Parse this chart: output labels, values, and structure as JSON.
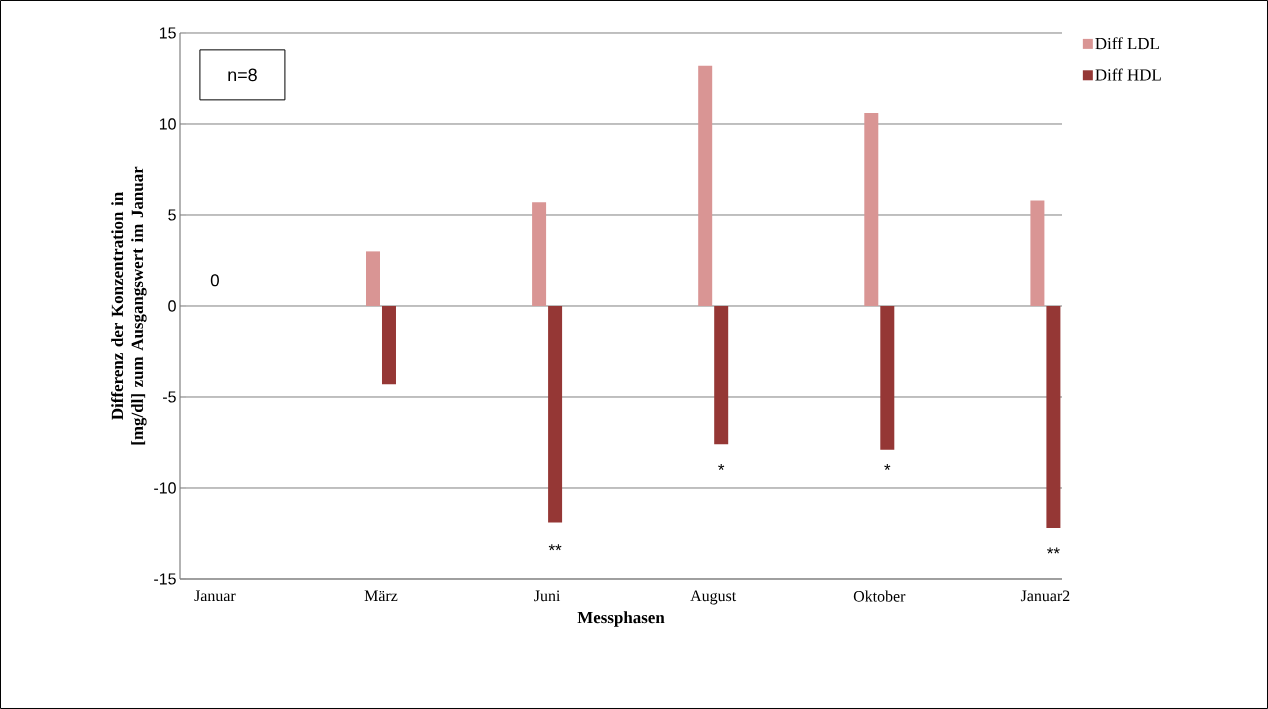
{
  "chart_data": {
    "type": "bar",
    "xlabel": "Messphasen",
    "ylabel": "Differenz der Konzentration in [mg/dl] zum Ausgangswert im Januar",
    "categories": [
      "Januar",
      "März",
      "Juni",
      "August",
      "Oktober",
      "Januar2"
    ],
    "series": [
      {
        "name": "Diff LDL",
        "color": "#d99594",
        "values": [
          0,
          3.0,
          5.7,
          13.2,
          10.6,
          5.8
        ]
      },
      {
        "name": "Diff HDL",
        "color": "#953735",
        "values": [
          0,
          -4.3,
          -11.9,
          -7.6,
          -7.9,
          -12.2
        ]
      }
    ],
    "ylim": [
      -15,
      15
    ],
    "yticks": [
      -15,
      -10,
      -5,
      0,
      5,
      10,
      15
    ],
    "grid": "y",
    "legend": "top right",
    "annotations": [
      "n=8",
      "0",
      "**",
      "*",
      "*",
      "**"
    ]
  }
}
